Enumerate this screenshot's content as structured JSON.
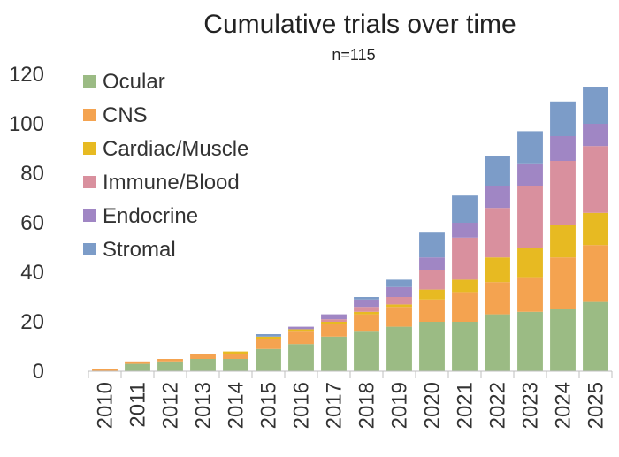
{
  "chart_data": {
    "type": "bar",
    "stacked": true,
    "title": "Cumulative trials over time",
    "subtitle": "n=115",
    "xlabel": "",
    "ylabel": "",
    "ylim": [
      0,
      120
    ],
    "yticks": [
      0,
      20,
      40,
      60,
      80,
      100,
      120
    ],
    "grid": false,
    "legend_position": "top-left",
    "categories": [
      "2010",
      "2011",
      "2012",
      "2013",
      "2014",
      "2015",
      "2016",
      "2017",
      "2018",
      "2019",
      "2020",
      "2021",
      "2022",
      "2023",
      "2024",
      "2025"
    ],
    "series": [
      {
        "name": "Ocular",
        "color": "#9BBB84",
        "values": [
          0,
          3,
          4,
          5,
          5,
          9,
          11,
          14,
          16,
          18,
          20,
          20,
          23,
          24,
          25,
          28
        ]
      },
      {
        "name": "CNS",
        "color": "#F4A350",
        "values": [
          1,
          1,
          1,
          2,
          2,
          4,
          5,
          5,
          7,
          8,
          9,
          12,
          13,
          14,
          21,
          23
        ]
      },
      {
        "name": "Cardiac/Muscle",
        "color": "#E7BA22",
        "values": [
          0,
          0,
          0,
          0,
          1,
          1,
          1,
          1,
          1,
          1,
          4,
          5,
          10,
          12,
          13,
          13
        ]
      },
      {
        "name": "Immune/Blood",
        "color": "#D9909E",
        "values": [
          0,
          0,
          0,
          0,
          0,
          0,
          0,
          1,
          2,
          3,
          8,
          17,
          20,
          25,
          26,
          27
        ]
      },
      {
        "name": "Endocrine",
        "color": "#A086C4",
        "values": [
          0,
          0,
          0,
          0,
          0,
          0,
          1,
          2,
          3,
          4,
          5,
          6,
          9,
          9,
          10,
          9
        ]
      },
      {
        "name": "Stromal",
        "color": "#7C9CC8",
        "values": [
          0,
          0,
          0,
          0,
          0,
          1,
          0,
          0,
          1,
          3,
          10,
          11,
          12,
          13,
          14,
          15
        ]
      }
    ]
  }
}
